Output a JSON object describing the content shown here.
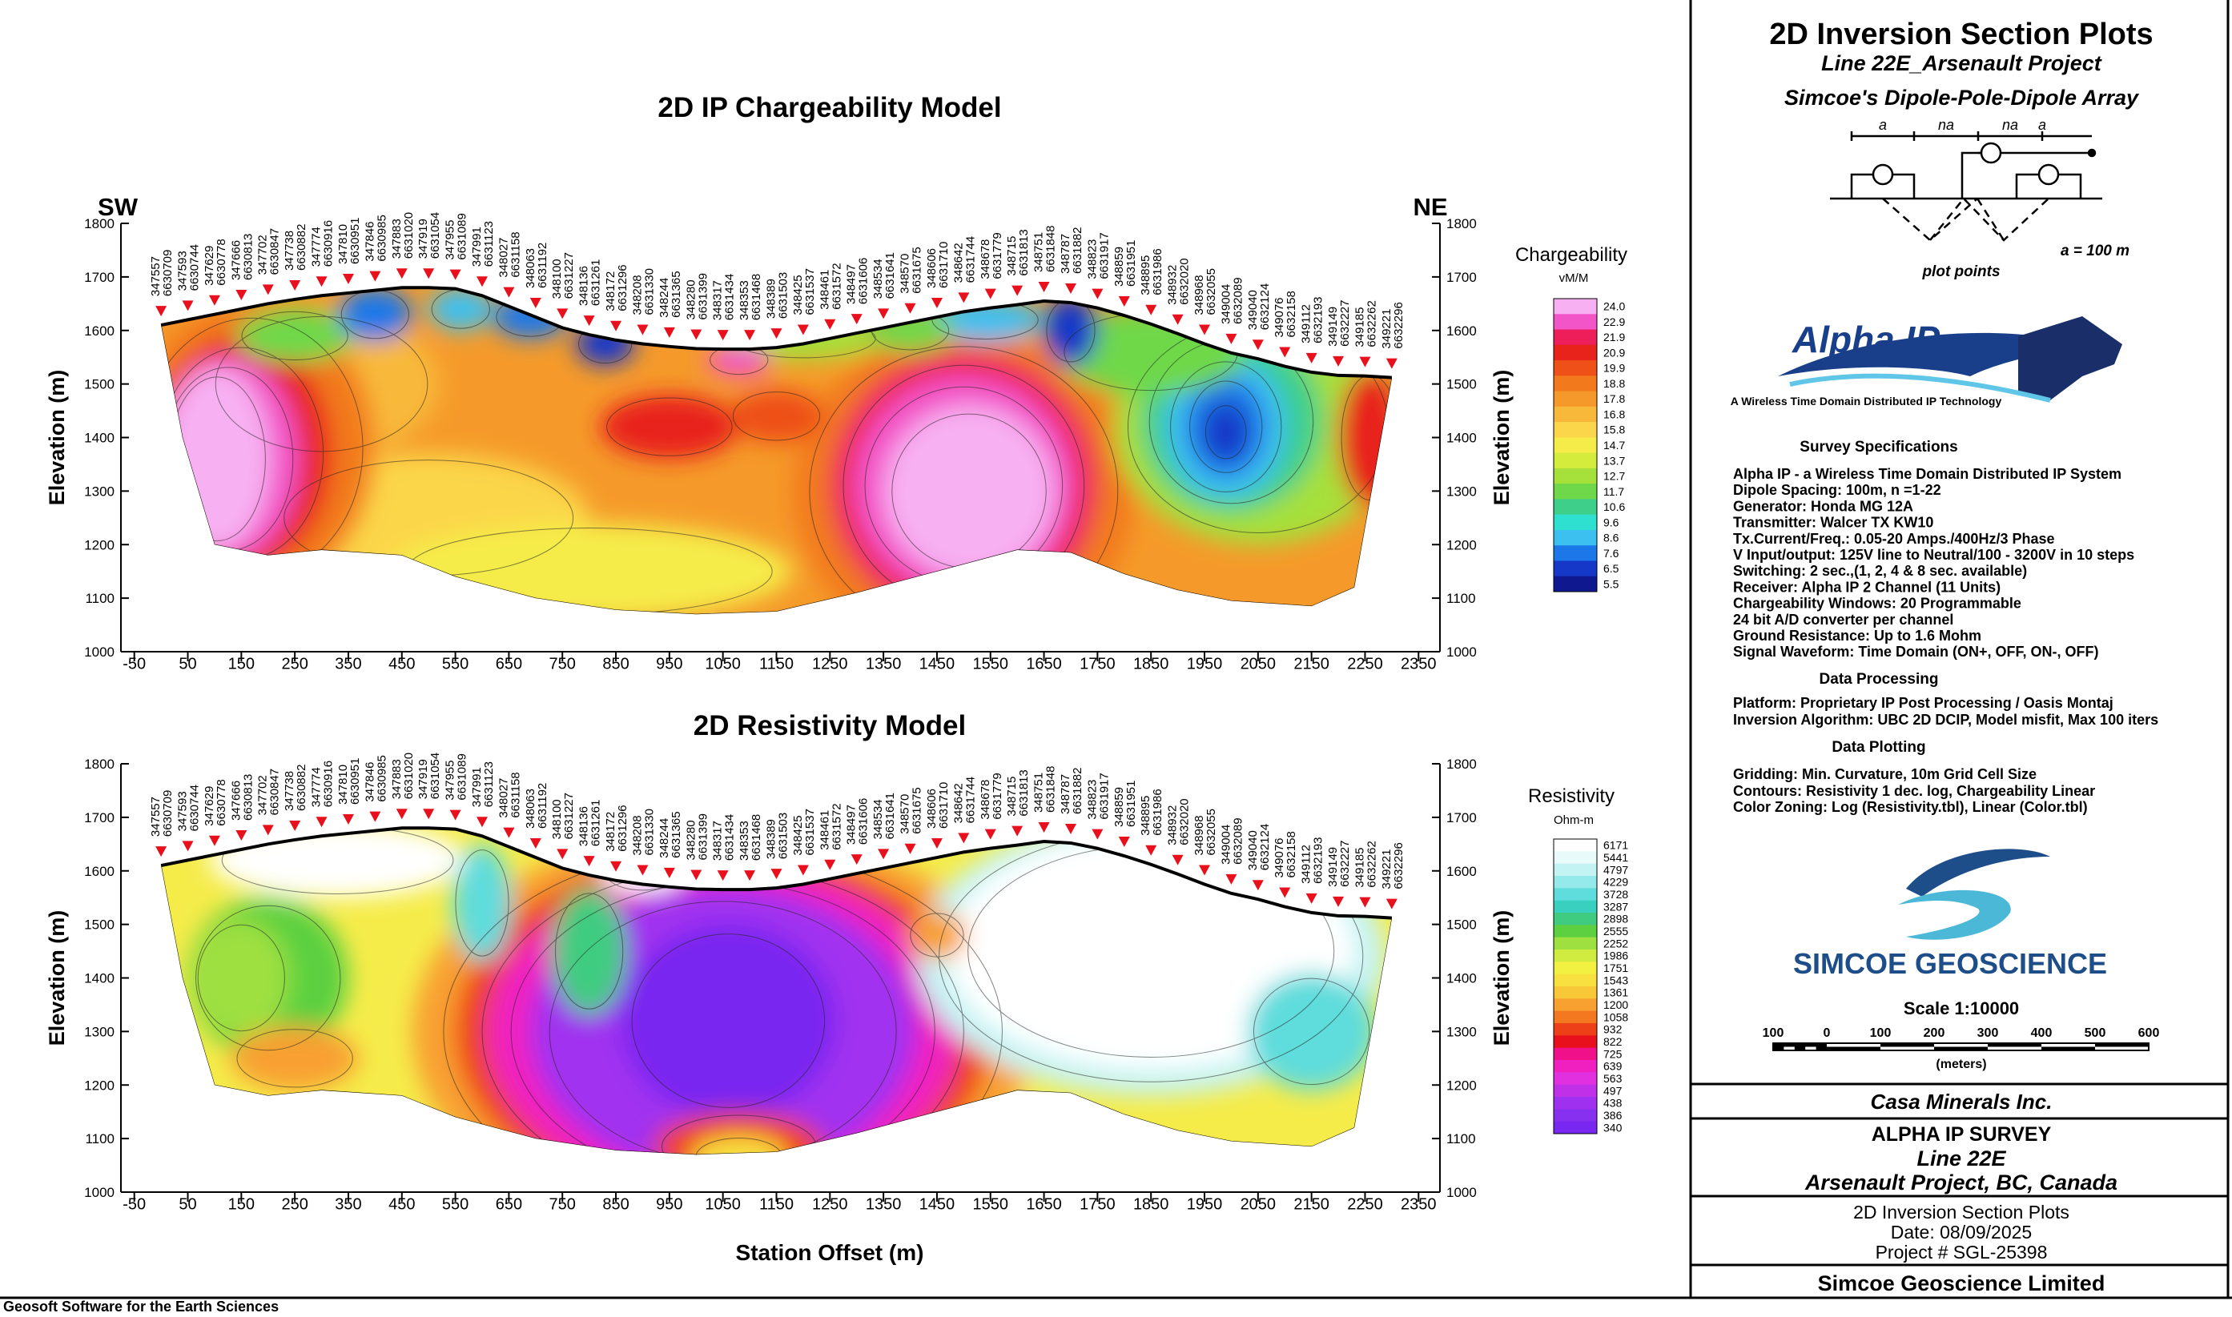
{
  "chart_data": [
    {
      "type": "section",
      "title": "2D IP Chargeability Model",
      "left_label": "SW",
      "right_label": "NE",
      "y_label": "Elevation (m)",
      "xlim": [
        -75,
        2390
      ],
      "ylim": [
        1000,
        1800
      ],
      "xticks": [
        -50,
        50,
        150,
        250,
        350,
        450,
        550,
        650,
        750,
        850,
        950,
        1050,
        1150,
        1250,
        1350,
        1450,
        1550,
        1650,
        1750,
        1850,
        1950,
        2050,
        2150,
        2250,
        2350
      ],
      "yticks": [
        1000,
        1100,
        1200,
        1300,
        1400,
        1500,
        1600,
        1700,
        1800
      ],
      "stations": [
        [
          "347557",
          "6630709"
        ],
        [
          "347593",
          "6630744"
        ],
        [
          "347629",
          "6630778"
        ],
        [
          "347666",
          "6630813"
        ],
        [
          "347702",
          "6630847"
        ],
        [
          "347738",
          "6630882"
        ],
        [
          "347774",
          "6630916"
        ],
        [
          "347810",
          "6630951"
        ],
        [
          "347846",
          "6630985"
        ],
        [
          "347883",
          "6631020"
        ],
        [
          "347919",
          "6631054"
        ],
        [
          "347955",
          "6631089"
        ],
        [
          "347991",
          "6631123"
        ],
        [
          "348027",
          "6631158"
        ],
        [
          "348063",
          "6631192"
        ],
        [
          "348100",
          "6631227"
        ],
        [
          "348136",
          "6631261"
        ],
        [
          "348172",
          "6631296"
        ],
        [
          "348208",
          "6631330"
        ],
        [
          "348244",
          "6631365"
        ],
        [
          "348280",
          "6631399"
        ],
        [
          "348317",
          "6631434"
        ],
        [
          "348353",
          "6631468"
        ],
        [
          "348389",
          "6631503"
        ],
        [
          "348425",
          "6631537"
        ],
        [
          "348461",
          "6631572"
        ],
        [
          "348497",
          "6631606"
        ],
        [
          "348534",
          "6631641"
        ],
        [
          "348570",
          "6631675"
        ],
        [
          "348606",
          "6631710"
        ],
        [
          "348642",
          "6631744"
        ],
        [
          "348678",
          "6631779"
        ],
        [
          "348715",
          "6631813"
        ],
        [
          "348751",
          "6631848"
        ],
        [
          "348787",
          "6631882"
        ],
        [
          "348823",
          "6631917"
        ],
        [
          "348859",
          "6631951"
        ],
        [
          "348895",
          "6631986"
        ],
        [
          "348932",
          "6632020"
        ],
        [
          "348968",
          "6632055"
        ],
        [
          "349004",
          "6632089"
        ],
        [
          "349040",
          "6632124"
        ],
        [
          "349076",
          "6632158"
        ],
        [
          "349112",
          "6632193"
        ],
        [
          "349149",
          "6632227"
        ],
        [
          "349185",
          "6632262"
        ],
        [
          "349221",
          "6632296"
        ]
      ],
      "topography": {
        "x": [
          0,
          50,
          100,
          150,
          200,
          250,
          300,
          350,
          400,
          450,
          500,
          550,
          600,
          650,
          700,
          750,
          800,
          850,
          900,
          950,
          1000,
          1050,
          1100,
          1150,
          1200,
          1250,
          1300,
          1350,
          1400,
          1450,
          1500,
          1550,
          1600,
          1650,
          1700,
          1750,
          1800,
          1850,
          1900,
          1950,
          2000,
          2050,
          2100,
          2150,
          2200,
          2250,
          2300
        ],
        "elevation": [
          1610,
          1620,
          1630,
          1640,
          1650,
          1658,
          1665,
          1670,
          1675,
          1680,
          1680,
          1678,
          1665,
          1645,
          1625,
          1605,
          1592,
          1582,
          1575,
          1570,
          1566,
          1565,
          1565,
          1568,
          1575,
          1585,
          1595,
          1605,
          1615,
          1625,
          1635,
          1642,
          1648,
          1655,
          1652,
          1642,
          1628,
          1612,
          1594,
          1575,
          1558,
          1547,
          1533,
          1522,
          1516,
          1515,
          1512
        ]
      },
      "legend": {
        "title": "Chargeability",
        "unit": "vM/M",
        "labels": [
          {
            "value": 24,
            "label": "24.0"
          },
          22.9,
          21.9,
          20.9,
          19.9,
          18.8,
          17.8,
          16.8,
          15.8,
          14.7,
          13.7,
          12.7,
          11.7,
          10.6,
          9.6,
          8.6,
          7.6,
          6.5,
          5.5
        ],
        "colors": [
          "#f7b0f2",
          "#f255c8",
          "#ee1e5a",
          "#e8231c",
          "#ee5018",
          "#f27a1c",
          "#f59a2a",
          "#f8b93a",
          "#fbd64a",
          "#f5ec4a",
          "#d4ec3c",
          "#a6e03a",
          "#6ed84a",
          "#3ecf8a",
          "#2ee0d0",
          "#3cc0f0",
          "#1c78e8",
          "#1638c8",
          "#101890"
        ]
      }
    },
    {
      "type": "section",
      "title": "2D Resistivity Model",
      "y_label": "Elevation (m)",
      "x_label": "Station Offset (m)",
      "xlim": [
        -75,
        2390
      ],
      "ylim": [
        1000,
        1800
      ],
      "xticks": [
        -50,
        50,
        150,
        250,
        350,
        450,
        550,
        650,
        750,
        850,
        950,
        1050,
        1150,
        1250,
        1350,
        1450,
        1550,
        1650,
        1750,
        1850,
        1950,
        2050,
        2150,
        2250,
        2350
      ],
      "yticks": [
        1000,
        1100,
        1200,
        1300,
        1400,
        1500,
        1600,
        1700,
        1800
      ],
      "legend": {
        "title": "Resistivity",
        "unit": "Ohm-m",
        "labels": [
          6171,
          5441,
          4797,
          4229,
          3728,
          3287,
          2898,
          2555,
          2252,
          1986,
          1751,
          1543,
          1361,
          1200,
          1058,
          932,
          822,
          725,
          639,
          563,
          497,
          438,
          386,
          340
        ],
        "colors": [
          "#ffffff",
          "#e8fafa",
          "#c4f3f3",
          "#94eaea",
          "#5fdcdc",
          "#3ad0c0",
          "#40cc80",
          "#5cd040",
          "#9ee040",
          "#d0ec40",
          "#f2f040",
          "#f8e040",
          "#f8c838",
          "#f8a030",
          "#f47820",
          "#ee4018",
          "#e8101c",
          "#f0108a",
          "#f020c0",
          "#e030e0",
          "#c030e8",
          "#a030f0",
          "#8830f0",
          "#7828f0"
        ]
      }
    }
  ],
  "title_block": {
    "title": "2D Inversion Section Plots",
    "line": "Line 22E_Arsenault Project",
    "array": "Simcoe's Dipole-Pole-Dipole Array",
    "array_diagram": {
      "spacing_labels": [
        "a",
        "na",
        "na",
        "a"
      ],
      "caption": "plot points",
      "scale_note": "a = 100 m"
    },
    "alpha_logo": {
      "name": "Alpha IP",
      "tagline": "A Wireless Time Domain Distributed IP Technology"
    },
    "survey_heading": "Survey Specifications",
    "survey_specs": [
      "Alpha IP - a Wireless  Time Domain Distributed IP System",
      "Dipole Spacing: 100m, n =1-22",
      "Generator: Honda MG 12A",
      "Transmitter: Walcer TX KW10",
      "Tx.Current/Freq.: 0.05-20 Amps./400Hz/3 Phase",
      "V Input/output: 125V line to Neutral/100 - 3200V in 10 steps",
      "Switching: 2 sec.,(1, 2, 4 & 8 sec. available)",
      "Receiver: Alpha IP 2 Channel (11 Units)",
      "Chargeability Windows: 20 Programmable",
      "24 bit A/D converter per channel",
      "Ground Resistance: Up to 1.6 Mohm",
      "Signal Waveform: Time Domain (ON+, OFF, ON-, OFF)"
    ],
    "processing_heading": "Data Processing",
    "processing": [
      "Platform: Proprietary IP Post Processing / Oasis Montaj",
      "Inversion Algorithm: UBC 2D DCIP, Model misfit, Max 100 iters"
    ],
    "plotting_heading": "Data Plotting",
    "plotting": [
      "Gridding: Min. Curvature, 10m Grid Cell Size",
      "Contours: Resistivity 1 dec. log, Chargeability Linear",
      "Color Zoning: Log (Resistivity.tbl), Linear (Color.tbl)"
    ],
    "company_logo": "SIMCOE GEOSCIENCE",
    "scale": "Scale 1:10000",
    "scale_bar": {
      "labels": [
        "100",
        "0",
        "100",
        "200",
        "300",
        "400",
        "500",
        "600"
      ],
      "unit": "(meters)"
    },
    "client": "Casa Minerals Inc.",
    "survey": "ALPHA IP SURVEY",
    "line_name": "Line 22E",
    "project": "Arsenault Project, BC, Canada",
    "plot_name": "2D Inversion Section Plots",
    "date": "Date: 08/09/2025",
    "project_number": "Project # SGL-25398",
    "company": "Simcoe Geoscience Limited"
  },
  "footer": "Geosoft Software for the Earth Sciences"
}
